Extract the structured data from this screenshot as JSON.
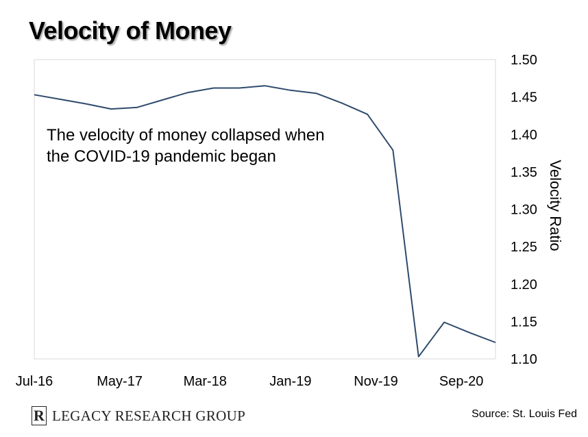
{
  "branding": {
    "logo_mark": "R",
    "logo_text": "LEGACY RESEARCH GROUP",
    "source": "Source: St. Louis Fed"
  },
  "annotation": {
    "line1": "The velocity of money collapsed when",
    "line2": "the COVID-19 pandemic began"
  },
  "colors": {
    "line": "#2e4a6b",
    "plot_border": "#d9d9d9",
    "text": "#000000"
  },
  "chart_data": {
    "type": "line",
    "title": "Velocity of Money",
    "ylabel": "Velocity Ratio",
    "xlabel": "",
    "ylim": [
      1.1,
      1.5
    ],
    "y_ticks": [
      "1.50",
      "1.45",
      "1.40",
      "1.35",
      "1.30",
      "1.25",
      "1.20",
      "1.15",
      "1.10"
    ],
    "x_tick_labels": [
      "Jul-16",
      "May-17",
      "Mar-18",
      "Jan-19",
      "Nov-19",
      "Sep-20"
    ],
    "grid": false,
    "legend": "none",
    "series": [
      {
        "x": [
          "Jul-16",
          "Oct-16",
          "Jan-17",
          "Apr-17",
          "Jul-17",
          "Oct-17",
          "Jan-18",
          "Apr-18",
          "Jul-18",
          "Oct-18",
          "Jan-19",
          "Apr-19",
          "Jul-19",
          "Oct-19",
          "Jan-20",
          "Apr-20",
          "Jul-20",
          "Oct-20",
          "Jan-21"
        ],
        "values": [
          1.453,
          1.447,
          1.441,
          1.434,
          1.436,
          1.446,
          1.456,
          1.462,
          1.462,
          1.465,
          1.459,
          1.455,
          1.442,
          1.427,
          1.379,
          1.103,
          1.149,
          1.135,
          1.122
        ]
      }
    ]
  }
}
